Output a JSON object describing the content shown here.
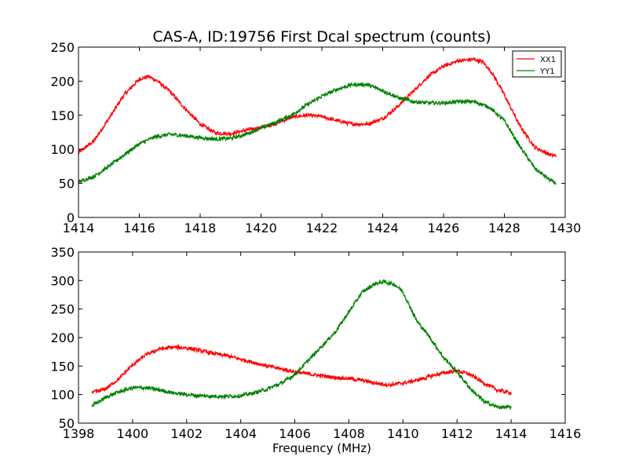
{
  "chart_data": [
    {
      "type": "line",
      "title": "CAS-A, ID:19756 First Dcal spectrum (counts)",
      "xlabel": "",
      "ylabel": "",
      "xlim": [
        1414,
        1430
      ],
      "ylim": [
        0,
        250
      ],
      "xticks": [
        1414,
        1416,
        1418,
        1420,
        1422,
        1424,
        1426,
        1428,
        1430
      ],
      "yticks": [
        0,
        50,
        100,
        150,
        200,
        250
      ],
      "grid": false,
      "legend": {
        "placement": "top-right",
        "entries": [
          "XX1",
          "YY1"
        ]
      },
      "series": [
        {
          "name": "XX1",
          "color": "#ff0000",
          "x": [
            1414.0,
            1414.5,
            1415.0,
            1415.5,
            1416.0,
            1416.3,
            1416.6,
            1417.0,
            1417.5,
            1418.0,
            1418.5,
            1419.0,
            1419.5,
            1420.0,
            1420.5,
            1421.0,
            1421.5,
            1422.0,
            1422.5,
            1423.0,
            1423.5,
            1424.0,
            1424.5,
            1425.0,
            1425.5,
            1426.0,
            1426.5,
            1427.0,
            1427.3,
            1427.6,
            1428.0,
            1428.5,
            1429.0,
            1429.5,
            1429.7
          ],
          "y": [
            95,
            112,
            145,
            180,
            203,
            207,
            200,
            185,
            160,
            137,
            124,
            123,
            128,
            132,
            138,
            147,
            150,
            148,
            142,
            137,
            137,
            145,
            163,
            185,
            207,
            222,
            230,
            232,
            228,
            212,
            180,
            135,
            103,
            92,
            90
          ]
        },
        {
          "name": "YY1",
          "color": "#008000",
          "x": [
            1414.0,
            1414.5,
            1415.0,
            1415.5,
            1416.0,
            1416.5,
            1417.0,
            1417.5,
            1418.0,
            1418.5,
            1419.0,
            1419.5,
            1420.0,
            1420.5,
            1421.0,
            1421.5,
            1422.0,
            1422.5,
            1423.0,
            1423.5,
            1424.0,
            1424.5,
            1425.0,
            1425.5,
            1426.0,
            1426.5,
            1427.0,
            1427.5,
            1428.0,
            1428.5,
            1429.0,
            1429.5,
            1429.7
          ],
          "y": [
            52,
            60,
            75,
            92,
            108,
            118,
            122,
            120,
            117,
            115,
            116,
            122,
            131,
            140,
            150,
            165,
            178,
            188,
            195,
            195,
            186,
            176,
            170,
            168,
            168,
            170,
            170,
            162,
            142,
            105,
            72,
            55,
            50
          ]
        }
      ]
    },
    {
      "type": "line",
      "title": "",
      "xlabel": "Frequency (MHz)",
      "ylabel": "",
      "xlim": [
        1398,
        1416
      ],
      "ylim": [
        50,
        350
      ],
      "xticks": [
        1398,
        1400,
        1402,
        1404,
        1406,
        1408,
        1410,
        1412,
        1414,
        1416
      ],
      "yticks": [
        50,
        100,
        150,
        200,
        250,
        300,
        350
      ],
      "grid": false,
      "series": [
        {
          "name": "XX1",
          "color": "#ff0000",
          "x": [
            1398.5,
            1399.0,
            1399.5,
            1400.0,
            1400.5,
            1401.0,
            1401.5,
            1402.0,
            1402.5,
            1403.0,
            1403.5,
            1404.0,
            1404.5,
            1405.0,
            1405.5,
            1406.0,
            1406.5,
            1407.0,
            1407.5,
            1408.0,
            1408.5,
            1409.0,
            1409.5,
            1410.0,
            1410.5,
            1411.0,
            1411.5,
            1412.0,
            1412.5,
            1413.0,
            1413.5,
            1414.0
          ],
          "y": [
            103,
            110,
            128,
            152,
            170,
            180,
            183,
            182,
            177,
            172,
            168,
            162,
            156,
            150,
            145,
            140,
            136,
            133,
            130,
            128,
            125,
            120,
            117,
            120,
            125,
            132,
            138,
            142,
            135,
            120,
            108,
            103
          ]
        },
        {
          "name": "YY1",
          "color": "#008000",
          "x": [
            1398.5,
            1399.0,
            1399.5,
            1400.0,
            1400.5,
            1401.0,
            1401.5,
            1402.0,
            1402.5,
            1403.0,
            1403.5,
            1404.0,
            1404.5,
            1405.0,
            1405.5,
            1406.0,
            1406.5,
            1407.0,
            1407.5,
            1408.0,
            1408.5,
            1409.0,
            1409.3,
            1409.7,
            1410.0,
            1410.5,
            1411.0,
            1411.5,
            1412.0,
            1412.5,
            1413.0,
            1413.5,
            1414.0
          ],
          "y": [
            80,
            95,
            105,
            112,
            112,
            108,
            103,
            100,
            98,
            97,
            97,
            98,
            103,
            110,
            120,
            135,
            160,
            185,
            210,
            245,
            280,
            295,
            298,
            293,
            280,
            230,
            200,
            165,
            140,
            110,
            88,
            78,
            78
          ]
        }
      ]
    }
  ]
}
